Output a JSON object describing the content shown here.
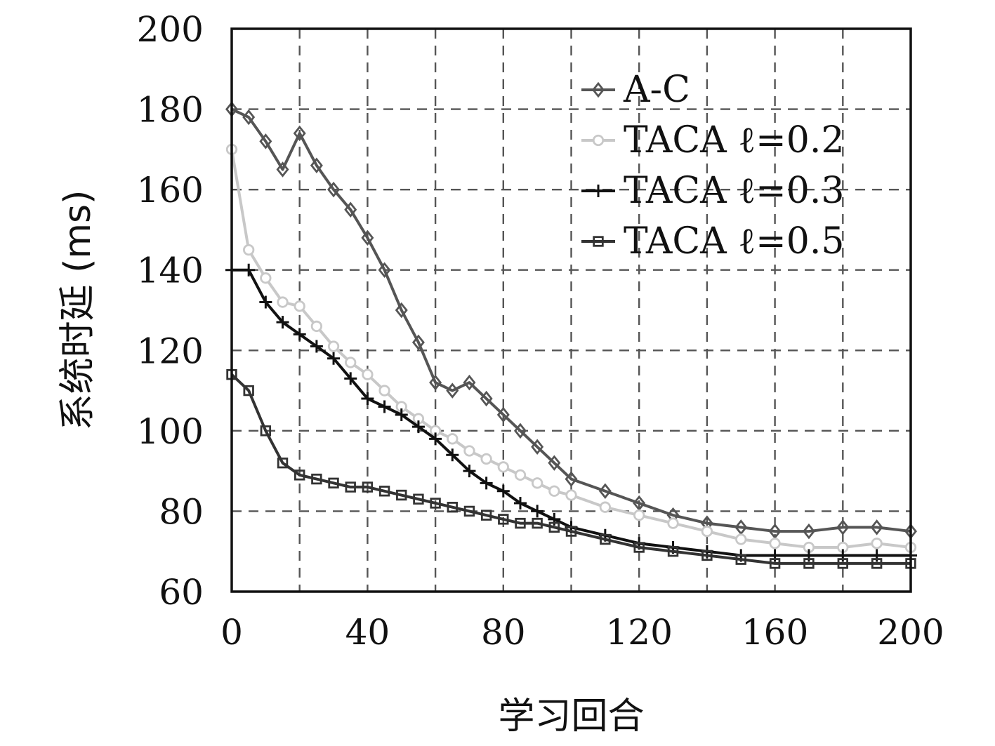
{
  "chart_data": {
    "type": "line",
    "title": "",
    "xlabel": "学习回合",
    "ylabel": "系统时延 (ms)",
    "xlim": [
      0,
      200
    ],
    "ylim": [
      60,
      200
    ],
    "xticks": [
      "0",
      "40",
      "80",
      "120",
      "160",
      "200"
    ],
    "yticks": [
      "60",
      "80",
      "100",
      "120",
      "140",
      "160",
      "180",
      "200"
    ],
    "grid": true,
    "legend_position": "top-right",
    "x": [
      0,
      5,
      10,
      15,
      20,
      25,
      30,
      35,
      40,
      45,
      50,
      55,
      60,
      65,
      70,
      75,
      80,
      85,
      90,
      95,
      100,
      110,
      120,
      130,
      140,
      150,
      160,
      170,
      180,
      190,
      200
    ],
    "series": [
      {
        "name": "A-C",
        "color": "#555555",
        "marker": "diamond",
        "values": [
          180,
          178,
          172,
          165,
          174,
          166,
          160,
          155,
          148,
          140,
          130,
          122,
          112,
          110,
          112,
          108,
          104,
          100,
          96,
          92,
          88,
          85,
          82,
          79,
          77,
          76,
          75,
          75,
          76,
          76,
          75
        ]
      },
      {
        "name": "TACA ℓ=0.2",
        "color": "#c8c8c8",
        "marker": "circle",
        "values": [
          170,
          145,
          138,
          132,
          131,
          126,
          121,
          117,
          114,
          110,
          106,
          103,
          100,
          98,
          95,
          93,
          91,
          89,
          87,
          85,
          84,
          81,
          79,
          77,
          75,
          73,
          72,
          71,
          71,
          72,
          71
        ]
      },
      {
        "name": "TACA ℓ=0.3",
        "color": "#111111",
        "marker": "plus",
        "values": [
          140,
          140,
          132,
          127,
          124,
          121,
          118,
          113,
          108,
          106,
          104,
          101,
          98,
          94,
          90,
          87,
          85,
          82,
          80,
          78,
          76,
          74,
          72,
          71,
          70,
          69,
          69,
          69,
          69,
          69,
          69
        ]
      },
      {
        "name": "TACA ℓ=0.5",
        "color": "#333333",
        "marker": "square",
        "values": [
          114,
          110,
          100,
          92,
          89,
          88,
          87,
          86,
          86,
          85,
          84,
          83,
          82,
          81,
          80,
          79,
          78,
          77,
          77,
          76,
          75,
          73,
          71,
          70,
          69,
          68,
          67,
          67,
          67,
          67,
          67
        ]
      }
    ]
  }
}
